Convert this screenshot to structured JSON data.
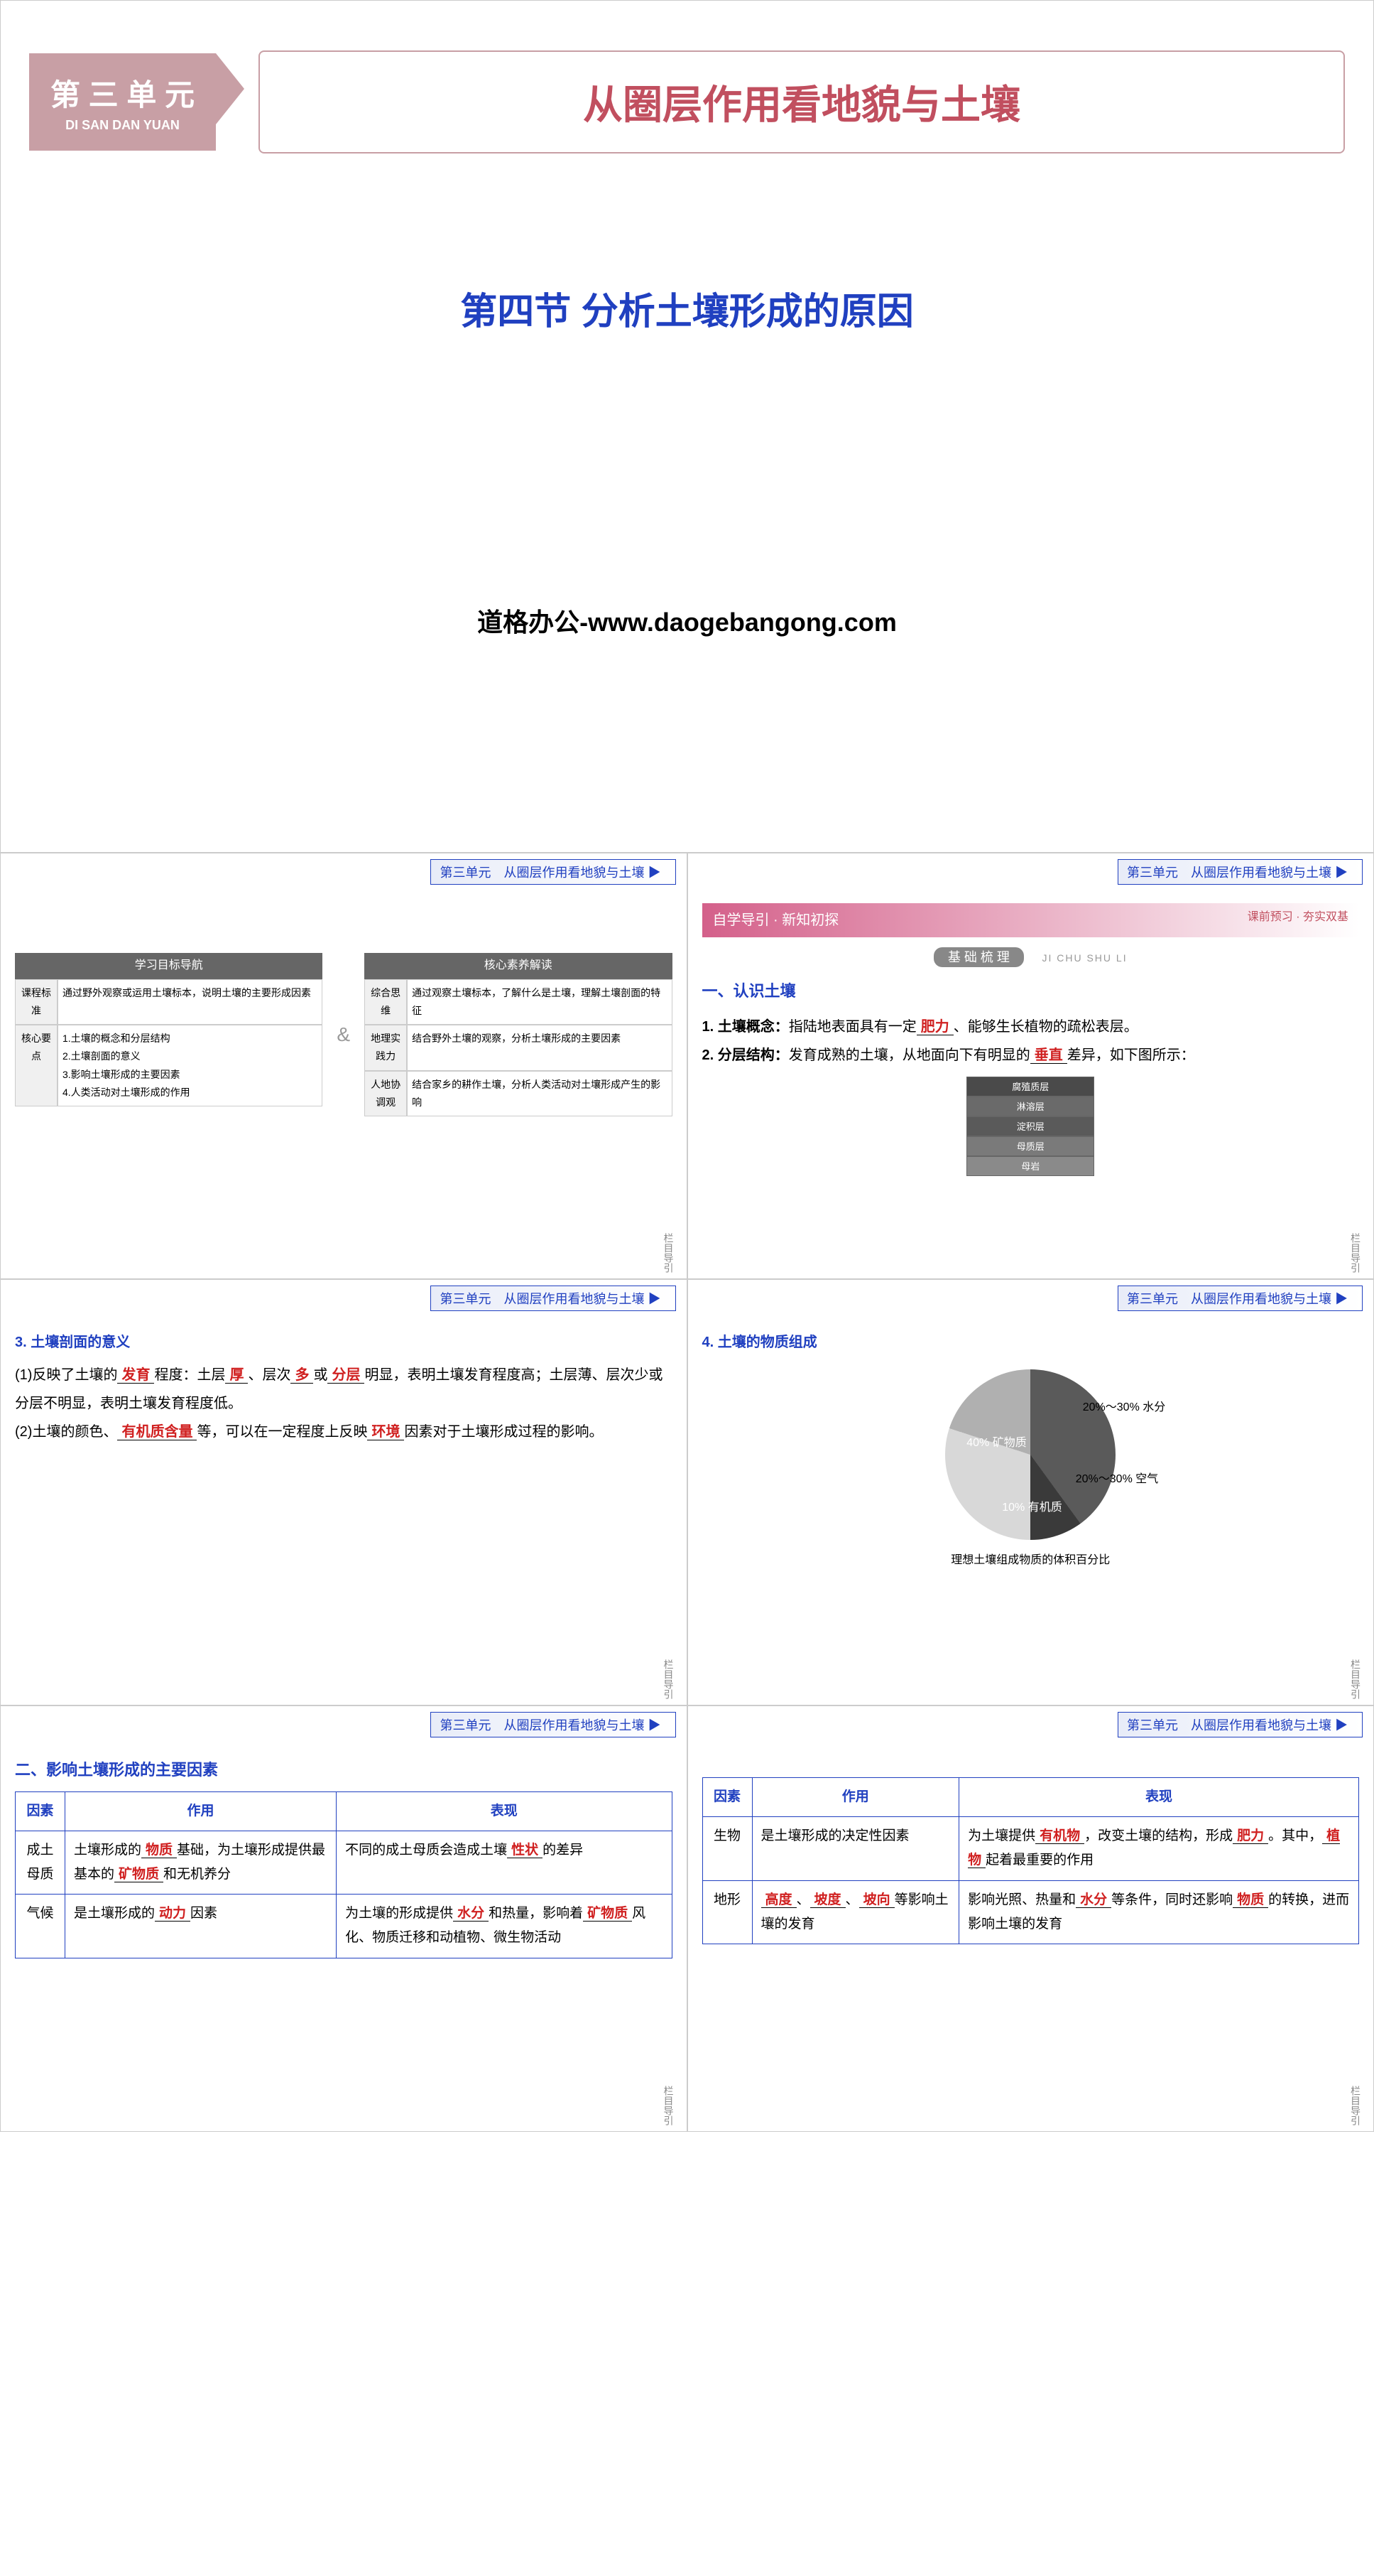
{
  "unit_badge": "第 三 单 元",
  "unit_pinyin": "DI SAN DAN YUAN",
  "unit_title": "从圈层作用看地貌与土壤",
  "section_title": "第四节 分析土壤形成的原因",
  "watermark": "道格办公-www.daogebangong.com",
  "slide_header_unit": "第三单元",
  "slide_header_title": "从圈层作用看地貌与土壤",
  "slide_footer": "栏目导引",
  "nav": {
    "left_header": "学习目标导航",
    "right_header": "核心素养解读",
    "left_rows": [
      {
        "label": "课程标准",
        "text": "通过野外观察或运用土壤标本，说明土壤的主要形成因素"
      },
      {
        "label": "核心要点",
        "text": "1.土壤的概念和分层结构\n2.土壤剖面的意义\n3.影响土壤形成的主要因素\n4.人类活动对土壤形成的作用"
      }
    ],
    "right_rows": [
      {
        "label": "综合思维",
        "text": "通过观察土壤标本，了解什么是土壤，理解土壤剖面的特征"
      },
      {
        "label": "地理实践力",
        "text": "结合野外土壤的观察，分析土壤形成的主要因素"
      },
      {
        "label": "人地协调观",
        "text": "结合家乡的耕作土壤，分析人类活动对土壤形成产生的影响"
      }
    ]
  },
  "guide": {
    "left": "自学导引 · 新知初探",
    "right": "课前预习 · 夯实双基",
    "basic_label": "基 础 梳 理",
    "basic_pinyin": "JI CHU SHU LI"
  },
  "section1": {
    "heading": "一、认识土壤",
    "item1_prefix": "1. 土壤概念：",
    "item1_text1": "指陆地表面具有一定",
    "item1_blank1": "肥力",
    "item1_text2": "、能够生长植物的疏松表层。",
    "item2_prefix": "2. 分层结构：",
    "item2_text1": "发育成熟的土壤，从地面向下有明显的",
    "item2_blank1": "垂直",
    "item2_text2": "差异，如下图所示：",
    "soil_layers": [
      "腐殖质层",
      "淋溶层",
      "淀积层",
      "母质层",
      "母岩"
    ],
    "soil_colors": [
      "#4a4a4a",
      "#6a6a6a",
      "#5a5a5a",
      "#7a7a7a",
      "#8a8a8a"
    ]
  },
  "section3": {
    "heading": "3. 土壤剖面的意义",
    "p1_a": "(1)反映了土壤的",
    "p1_b1": "发育",
    "p1_b": "程度：土层",
    "p1_b2": "厚",
    "p1_c": "、层次",
    "p1_b3": "多",
    "p1_d": "或",
    "p1_b4": "分层",
    "p1_e": "明显，表明土壤发育程度高；土层薄、层次少或分层不明显，表明土壤发育程度低。",
    "p2_a": "(2)土壤的颜色、",
    "p2_b1": "有机质含量",
    "p2_b": "等，可以在一定程度上反映",
    "p2_b2": "环境",
    "p2_c": "因素对于土壤形成过程的影响。"
  },
  "section4": {
    "heading": "4. 土壤的物质组成",
    "pie": {
      "slices": [
        {
          "label": "40%\n矿物质",
          "value": 40,
          "color": "#5a5a5a"
        },
        {
          "label": "10%\n有机质",
          "value": 10,
          "color": "#3a3a3a"
        },
        {
          "label": "20%～30%\n空气",
          "value": 25,
          "color": "#d8d8d8"
        },
        {
          "label": "20%～30%\n水分",
          "value": 25,
          "color": "#b0b0b0"
        }
      ],
      "caption": "理想土壤组成物质的体积百分比"
    }
  },
  "section_factors": {
    "heading": "二、影响土壤形成的主要因素",
    "cols": [
      "因素",
      "作用",
      "表现"
    ],
    "table1": [
      {
        "factor": "成土母质",
        "role_parts": [
          "土壤形成的",
          "物质",
          "基础，为土壤形成提供最基本的",
          "矿物质",
          "和无机养分"
        ],
        "expr_parts": [
          "不同的成土母质会造成土壤",
          "性状",
          "的差异"
        ]
      },
      {
        "factor": "气候",
        "role_parts": [
          "是土壤形成的",
          "动力",
          "因素"
        ],
        "expr_parts": [
          "为土壤的形成提供",
          "水分",
          "和热量，影响着",
          "矿物质",
          "风化、物质迁移和动植物、微生物活动"
        ]
      }
    ],
    "table2": [
      {
        "factor": "生物",
        "role_parts": [
          "是土壤形成的决定性因素"
        ],
        "expr_parts": [
          "为土壤提供",
          "有机物",
          "，改变土壤的结构，形成",
          "肥力",
          "。其中，",
          "植物",
          "起着最重要的作用"
        ]
      },
      {
        "factor": "地形",
        "role_parts": [
          "",
          "高度",
          "、",
          "坡度",
          "、",
          "坡向",
          "等影响土壤的发育"
        ],
        "expr_parts": [
          "影响光照、热量和",
          "水分",
          "等条件，同时还影响",
          "物质",
          "的转换，进而影响土壤的发育"
        ]
      }
    ]
  }
}
